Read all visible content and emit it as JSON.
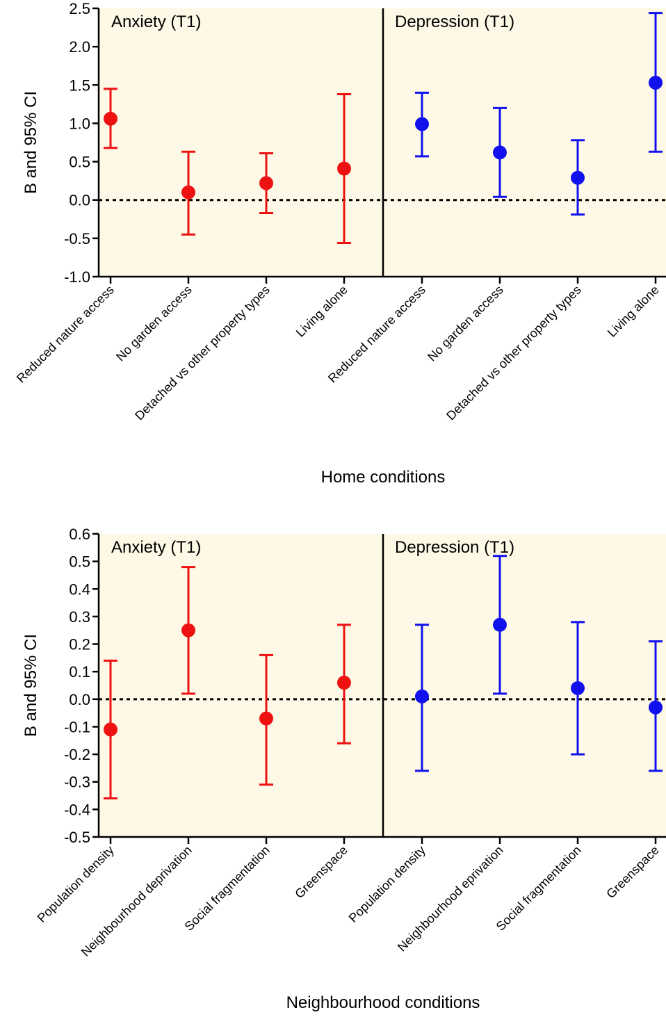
{
  "chart_data": [
    {
      "type": "scatter",
      "xlabel": "Home conditions",
      "ylabel": "B and 95% CI",
      "ylim": [
        -1.0,
        2.5
      ],
      "yticks": [
        "2.5",
        "2.0",
        "1.5",
        "1.0",
        "0.5",
        "0.0",
        "-0.5",
        "-1.0"
      ],
      "yticks_values": [
        2.5,
        2.0,
        1.5,
        1.0,
        0.5,
        0.0,
        -0.5,
        -1.0
      ],
      "reference_line": 0,
      "background": "#fdf9e6",
      "panels": [
        {
          "label": "Anxiety (T1)",
          "color": "#ee1111",
          "categories": [
            "Reduced nature access",
            "No garden access",
            "Detached vs other property types",
            "Living alone"
          ],
          "estimate": [
            1.06,
            0.1,
            0.22,
            0.41
          ],
          "ci_low": [
            0.68,
            -0.45,
            -0.17,
            -0.56
          ],
          "ci_high": [
            1.45,
            0.63,
            0.61,
            1.38
          ]
        },
        {
          "label": "Depression (T1)",
          "color": "#1111ee",
          "categories": [
            "Reduced nature access",
            "No garden access",
            "Detached vs other property types",
            "Living alone"
          ],
          "estimate": [
            0.99,
            0.62,
            0.29,
            1.53
          ],
          "ci_low": [
            0.57,
            0.04,
            -0.19,
            0.63
          ],
          "ci_high": [
            1.4,
            1.2,
            0.78,
            2.44
          ]
        }
      ]
    },
    {
      "type": "scatter",
      "xlabel": "Neighbourhood conditions",
      "ylabel": "B and 95% CI",
      "ylim": [
        -0.5,
        0.6
      ],
      "yticks": [
        "0.6",
        "0.5",
        "0.4",
        "0.3",
        "0.2",
        "0.1",
        "0.0",
        "-0.1",
        "-0.2",
        "-0.3",
        "-0.4",
        "-0.5"
      ],
      "yticks_values": [
        0.6,
        0.5,
        0.4,
        0.3,
        0.2,
        0.1,
        0.0,
        -0.1,
        -0.2,
        -0.3,
        -0.4,
        -0.5
      ],
      "reference_line": 0,
      "background": "#fdf9e6",
      "panels": [
        {
          "label": "Anxiety (T1)",
          "color": "#ee1111",
          "categories": [
            "Population density",
            "Neighbourhood deprivation",
            "Social fragmentation",
            "Greenspace"
          ],
          "estimate": [
            -0.11,
            0.25,
            -0.07,
            0.06
          ],
          "ci_low": [
            -0.36,
            0.02,
            -0.31,
            -0.16
          ],
          "ci_high": [
            0.14,
            0.48,
            0.16,
            0.27
          ]
        },
        {
          "label": "Depression (T1)",
          "color": "#1111ee",
          "categories": [
            "Population density",
            "Neighbourhood eprivation",
            "Social fragmentation",
            "Greenspace"
          ],
          "estimate": [
            0.01,
            0.27,
            0.04,
            -0.03
          ],
          "ci_low": [
            -0.26,
            0.02,
            -0.2,
            -0.26
          ],
          "ci_high": [
            0.27,
            0.52,
            0.28,
            0.21
          ]
        }
      ]
    }
  ]
}
